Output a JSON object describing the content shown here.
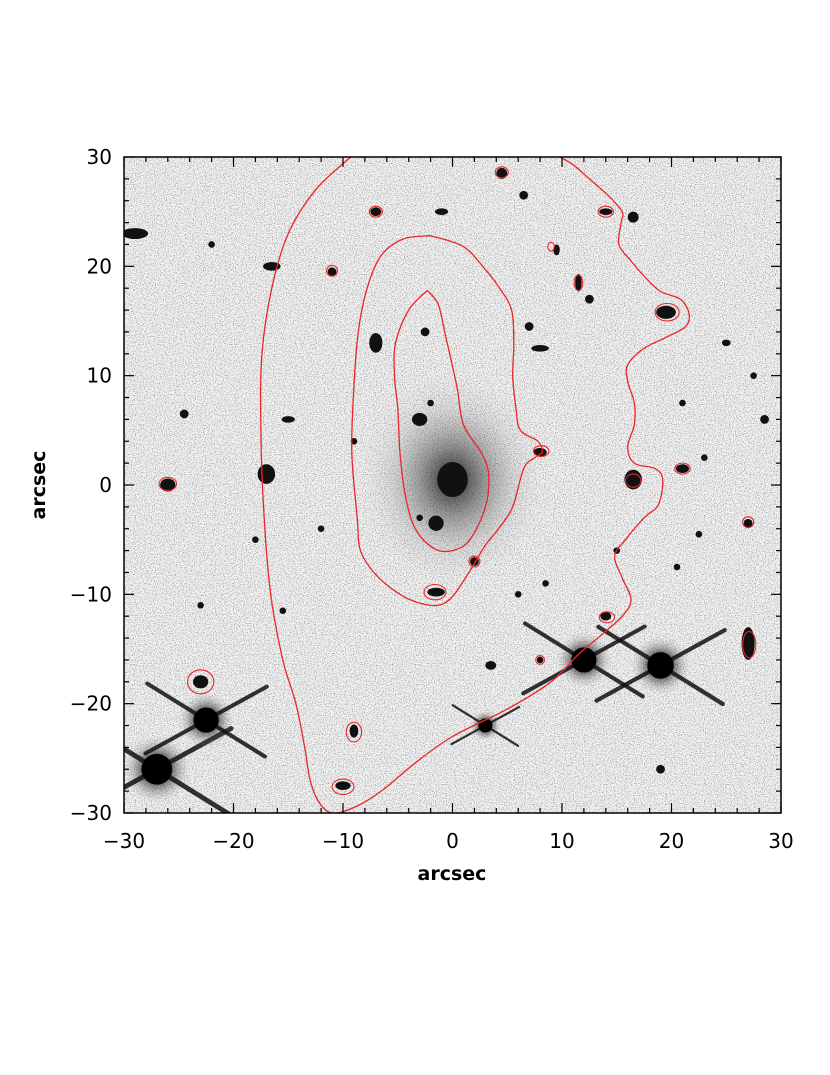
{
  "chart_data": {
    "type": "scatter",
    "xlabel": "arcsec",
    "ylabel": "arcsec",
    "xlim": [
      -30,
      30
    ],
    "ylim": [
      -30,
      30
    ],
    "x_ticks": [
      -30,
      -20,
      -10,
      0,
      10,
      20,
      30
    ],
    "y_ticks": [
      -30,
      -20,
      -10,
      0,
      10,
      20,
      30
    ],
    "x_tick_labels": [
      "−30",
      "−20",
      "−10",
      "0",
      "10",
      "20",
      "30"
    ],
    "y_tick_labels": [
      "−30",
      "−20",
      "−10",
      "0",
      "10",
      "20",
      "30"
    ],
    "grid": false,
    "colors": {
      "contour": "#e8262a",
      "sources": "#111111"
    },
    "stars": [
      {
        "x": -27,
        "y": -26,
        "size": 2.2
      },
      {
        "x": -22.5,
        "y": -21.5,
        "size": 1.8
      },
      {
        "x": 12,
        "y": -16,
        "size": 1.8
      },
      {
        "x": 19,
        "y": -16.5,
        "size": 1.9
      },
      {
        "x": 3,
        "y": -22,
        "size": 1.0
      }
    ],
    "galaxies": [
      {
        "x": 0,
        "y": 0.5,
        "rx": 1.4,
        "ry": 1.6,
        "halo": true
      },
      {
        "x": -1.5,
        "y": -3.5,
        "rx": 0.7,
        "ry": 0.7
      },
      {
        "x": -3,
        "y": 6,
        "rx": 0.7,
        "ry": 0.6
      },
      {
        "x": -7,
        "y": 13,
        "rx": 0.6,
        "ry": 0.9
      },
      {
        "x": -17,
        "y": 1,
        "rx": 0.8,
        "ry": 0.9
      },
      {
        "x": -26,
        "y": 0,
        "rx": 0.7,
        "ry": 0.6
      },
      {
        "x": -23,
        "y": -18,
        "rx": 0.7,
        "ry": 0.6
      },
      {
        "x": -29,
        "y": 23,
        "rx": 1.2,
        "ry": 0.5
      },
      {
        "x": -16.5,
        "y": 20,
        "rx": 0.8,
        "ry": 0.4
      },
      {
        "x": -24.5,
        "y": 6.5,
        "rx": 0.4,
        "ry": 0.4
      },
      {
        "x": -15,
        "y": 6,
        "rx": 0.6,
        "ry": 0.3
      },
      {
        "x": -1.5,
        "y": -9.8,
        "rx": 0.8,
        "ry": 0.4
      },
      {
        "x": -9,
        "y": -22.5,
        "rx": 0.4,
        "ry": 0.6
      },
      {
        "x": -10,
        "y": -27.5,
        "rx": 0.7,
        "ry": 0.4
      },
      {
        "x": 4.5,
        "y": 28.5,
        "rx": 0.5,
        "ry": 0.5
      },
      {
        "x": -7,
        "y": 25,
        "rx": 0.5,
        "ry": 0.4
      },
      {
        "x": -11,
        "y": 19.5,
        "rx": 0.4,
        "ry": 0.4
      },
      {
        "x": 14,
        "y": 25,
        "rx": 0.6,
        "ry": 0.3
      },
      {
        "x": 16.5,
        "y": 24.5,
        "rx": 0.5,
        "ry": 0.5
      },
      {
        "x": 11.5,
        "y": 18.5,
        "rx": 0.3,
        "ry": 0.8
      },
      {
        "x": 12.5,
        "y": 17,
        "rx": 0.4,
        "ry": 0.4
      },
      {
        "x": 19.5,
        "y": 15.8,
        "rx": 0.9,
        "ry": 0.6
      },
      {
        "x": 8,
        "y": 3,
        "rx": 0.6,
        "ry": 0.4
      },
      {
        "x": 16.5,
        "y": 0.5,
        "rx": 0.8,
        "ry": 0.9
      },
      {
        "x": 21,
        "y": 1.5,
        "rx": 0.6,
        "ry": 0.4
      },
      {
        "x": 27,
        "y": -3.5,
        "rx": 0.4,
        "ry": 0.4
      },
      {
        "x": 27,
        "y": -14.5,
        "rx": 0.6,
        "ry": 1.5
      },
      {
        "x": 14,
        "y": -12,
        "rx": 0.5,
        "ry": 0.4
      },
      {
        "x": 8,
        "y": -16,
        "rx": 0.3,
        "ry": 0.3
      },
      {
        "x": 2,
        "y": -7,
        "rx": 0.4,
        "ry": 0.4
      },
      {
        "x": 3.5,
        "y": -16.5,
        "rx": 0.5,
        "ry": 0.4
      },
      {
        "x": 8,
        "y": 12.5,
        "rx": 0.8,
        "ry": 0.3
      },
      {
        "x": 7,
        "y": 14.5,
        "rx": 0.4,
        "ry": 0.4
      },
      {
        "x": 9.5,
        "y": 21.5,
        "rx": 0.3,
        "ry": 0.5
      },
      {
        "x": 6.5,
        "y": 26.5,
        "rx": 0.4,
        "ry": 0.4
      },
      {
        "x": -2.5,
        "y": 14,
        "rx": 0.4,
        "ry": 0.4
      },
      {
        "x": -2,
        "y": 7.5,
        "rx": 0.3,
        "ry": 0.3
      },
      {
        "x": -3,
        "y": -3,
        "rx": 0.3,
        "ry": 0.3
      },
      {
        "x": -22,
        "y": 22,
        "rx": 0.3,
        "ry": 0.3
      },
      {
        "x": -9,
        "y": 4,
        "rx": 0.3,
        "ry": 0.3
      },
      {
        "x": -18,
        "y": -5,
        "rx": 0.3,
        "ry": 0.3
      },
      {
        "x": -12,
        "y": -4,
        "rx": 0.3,
        "ry": 0.3
      },
      {
        "x": 23,
        "y": 2.5,
        "rx": 0.3,
        "ry": 0.3
      },
      {
        "x": 25,
        "y": 13,
        "rx": 0.4,
        "ry": 0.3
      },
      {
        "x": 27.5,
        "y": 10,
        "rx": 0.3,
        "ry": 0.3
      },
      {
        "x": 28.5,
        "y": 6,
        "rx": 0.4,
        "ry": 0.4
      },
      {
        "x": 22.5,
        "y": -4.5,
        "rx": 0.3,
        "ry": 0.3
      },
      {
        "x": 19,
        "y": -26,
        "rx": 0.4,
        "ry": 0.4
      },
      {
        "x": 21,
        "y": 7.5,
        "rx": 0.3,
        "ry": 0.3
      },
      {
        "x": -1,
        "y": 25,
        "rx": 0.6,
        "ry": 0.3
      },
      {
        "x": -15.5,
        "y": -11.5,
        "rx": 0.3,
        "ry": 0.3
      },
      {
        "x": 15,
        "y": -6,
        "rx": 0.3,
        "ry": 0.3
      },
      {
        "x": 20.5,
        "y": -7.5,
        "rx": 0.3,
        "ry": 0.3
      },
      {
        "x": 8.5,
        "y": -9,
        "rx": 0.3,
        "ry": 0.3
      },
      {
        "x": 6,
        "y": -10,
        "rx": 0.3,
        "ry": 0.3
      },
      {
        "x": -23,
        "y": -11,
        "rx": 0.3,
        "ry": 0.3
      }
    ],
    "contours": [
      {
        "level": "outer",
        "points": [
          [
            -9.3,
            30
          ],
          [
            -12.5,
            27
          ],
          [
            -15,
            23
          ],
          [
            -16.5,
            18
          ],
          [
            -17.4,
            12
          ],
          [
            -17.5,
            5
          ],
          [
            -17.2,
            -3
          ],
          [
            -16.6,
            -10
          ],
          [
            -15.5,
            -16
          ],
          [
            -14.3,
            -20
          ],
          [
            -13.5,
            -24
          ],
          [
            -13,
            -27
          ],
          [
            -12.2,
            -29
          ],
          [
            -11,
            -30
          ],
          [
            -9,
            -29.5
          ],
          [
            -6.5,
            -28
          ],
          [
            -3.5,
            -25.5
          ],
          [
            0,
            -23
          ],
          [
            5,
            -20.5
          ],
          [
            9,
            -18
          ],
          [
            11.5,
            -15.5
          ],
          [
            13.5,
            -13.8
          ],
          [
            15.5,
            -12
          ],
          [
            16.3,
            -10.5
          ],
          [
            15.5,
            -8.5
          ],
          [
            14.8,
            -6.5
          ],
          [
            15.8,
            -5
          ],
          [
            17.5,
            -3
          ],
          [
            18.8,
            -1.8
          ],
          [
            19.2,
            0.5
          ],
          [
            18.5,
            1.5
          ],
          [
            16.6,
            2
          ],
          [
            16,
            3.5
          ],
          [
            16.6,
            5.5
          ],
          [
            16.6,
            7.5
          ],
          [
            16,
            9.5
          ],
          [
            16,
            11
          ],
          [
            17.5,
            12.5
          ],
          [
            19.5,
            13.5
          ],
          [
            21.3,
            14.5
          ],
          [
            21.6,
            15.7
          ],
          [
            20.8,
            17
          ],
          [
            19,
            17.7
          ],
          [
            17.6,
            19
          ],
          [
            16.3,
            20.5
          ],
          [
            15.2,
            22
          ],
          [
            15.4,
            24
          ],
          [
            15.5,
            25
          ],
          [
            14.2,
            26.5
          ],
          [
            12.5,
            28
          ],
          [
            11,
            29.3
          ],
          [
            9.8,
            30
          ]
        ]
      },
      {
        "level": "middle",
        "points": [
          [
            -2,
            22.8
          ],
          [
            -4.5,
            22.5
          ],
          [
            -6.5,
            21
          ],
          [
            -7.8,
            18
          ],
          [
            -8.6,
            14
          ],
          [
            -9,
            9
          ],
          [
            -9.2,
            3
          ],
          [
            -8.7,
            -3
          ],
          [
            -8.4,
            -6
          ],
          [
            -7,
            -8.2
          ],
          [
            -4.8,
            -10
          ],
          [
            -3,
            -10.8
          ],
          [
            -1.3,
            -11
          ],
          [
            0,
            -10.2
          ],
          [
            1.5,
            -8
          ],
          [
            2.4,
            -6.5
          ],
          [
            3,
            -5.5
          ],
          [
            4.2,
            -4
          ],
          [
            5.5,
            -2
          ],
          [
            6.5,
            1.5
          ],
          [
            7.5,
            2.5
          ],
          [
            8.2,
            3
          ],
          [
            7.8,
            4
          ],
          [
            6.2,
            5
          ],
          [
            5.8,
            7
          ],
          [
            5.5,
            10
          ],
          [
            5.6,
            13
          ],
          [
            5.4,
            16
          ],
          [
            4.3,
            18
          ],
          [
            3,
            19.7
          ],
          [
            1,
            21.8
          ],
          [
            -2,
            22.8
          ]
        ]
      },
      {
        "level": "inner",
        "points": [
          [
            -2.3,
            17.8
          ],
          [
            -4,
            16
          ],
          [
            -5.2,
            13
          ],
          [
            -5.3,
            10
          ],
          [
            -5,
            7
          ],
          [
            -4.8,
            3
          ],
          [
            -4.3,
            -1
          ],
          [
            -3.4,
            -4
          ],
          [
            -1.7,
            -5.8
          ],
          [
            0,
            -6
          ],
          [
            1.6,
            -5
          ],
          [
            3,
            -2
          ],
          [
            3.3,
            1
          ],
          [
            2.6,
            3
          ],
          [
            1,
            5.5
          ],
          [
            0.4,
            9
          ],
          [
            -0.6,
            13.5
          ],
          [
            -1.3,
            16.5
          ],
          [
            -2.3,
            17.8
          ]
        ]
      }
    ],
    "contour_rings": [
      {
        "x": -23,
        "y": -18,
        "rx": 1.2,
        "ry": 1.1
      },
      {
        "x": -26,
        "y": 0.1,
        "rx": 0.8,
        "ry": 0.6
      },
      {
        "x": -1.6,
        "y": -9.8,
        "rx": 1.0,
        "ry": 0.7
      },
      {
        "x": -9,
        "y": -22.6,
        "rx": 0.7,
        "ry": 0.9
      },
      {
        "x": -10,
        "y": -27.6,
        "rx": 1.0,
        "ry": 0.7
      },
      {
        "x": 4.5,
        "y": 28.6,
        "rx": 0.6,
        "ry": 0.5
      },
      {
        "x": -7,
        "y": 25,
        "rx": 0.6,
        "ry": 0.5
      },
      {
        "x": -11,
        "y": 19.6,
        "rx": 0.5,
        "ry": 0.5
      },
      {
        "x": 14,
        "y": 25,
        "rx": 0.7,
        "ry": 0.5
      },
      {
        "x": 9,
        "y": 21.8,
        "rx": 0.3,
        "ry": 0.4
      },
      {
        "x": 11.5,
        "y": 18.5,
        "rx": 0.4,
        "ry": 0.7
      },
      {
        "x": 19.6,
        "y": 15.8,
        "rx": 1.1,
        "ry": 0.8
      },
      {
        "x": 8.1,
        "y": 3.1,
        "rx": 0.7,
        "ry": 0.5
      },
      {
        "x": 16.5,
        "y": 0.4,
        "rx": 0.7,
        "ry": 0.6
      },
      {
        "x": 21,
        "y": 1.5,
        "rx": 0.7,
        "ry": 0.5
      },
      {
        "x": 27,
        "y": -3.4,
        "rx": 0.5,
        "ry": 0.5
      },
      {
        "x": 27.1,
        "y": -14.6,
        "rx": 0.6,
        "ry": 1.2
      },
      {
        "x": 14.1,
        "y": -12.1,
        "rx": 0.7,
        "ry": 0.5
      },
      {
        "x": 8,
        "y": -16,
        "rx": 0.4,
        "ry": 0.4
      },
      {
        "x": 2,
        "y": -7,
        "rx": 0.5,
        "ry": 0.5
      }
    ]
  }
}
